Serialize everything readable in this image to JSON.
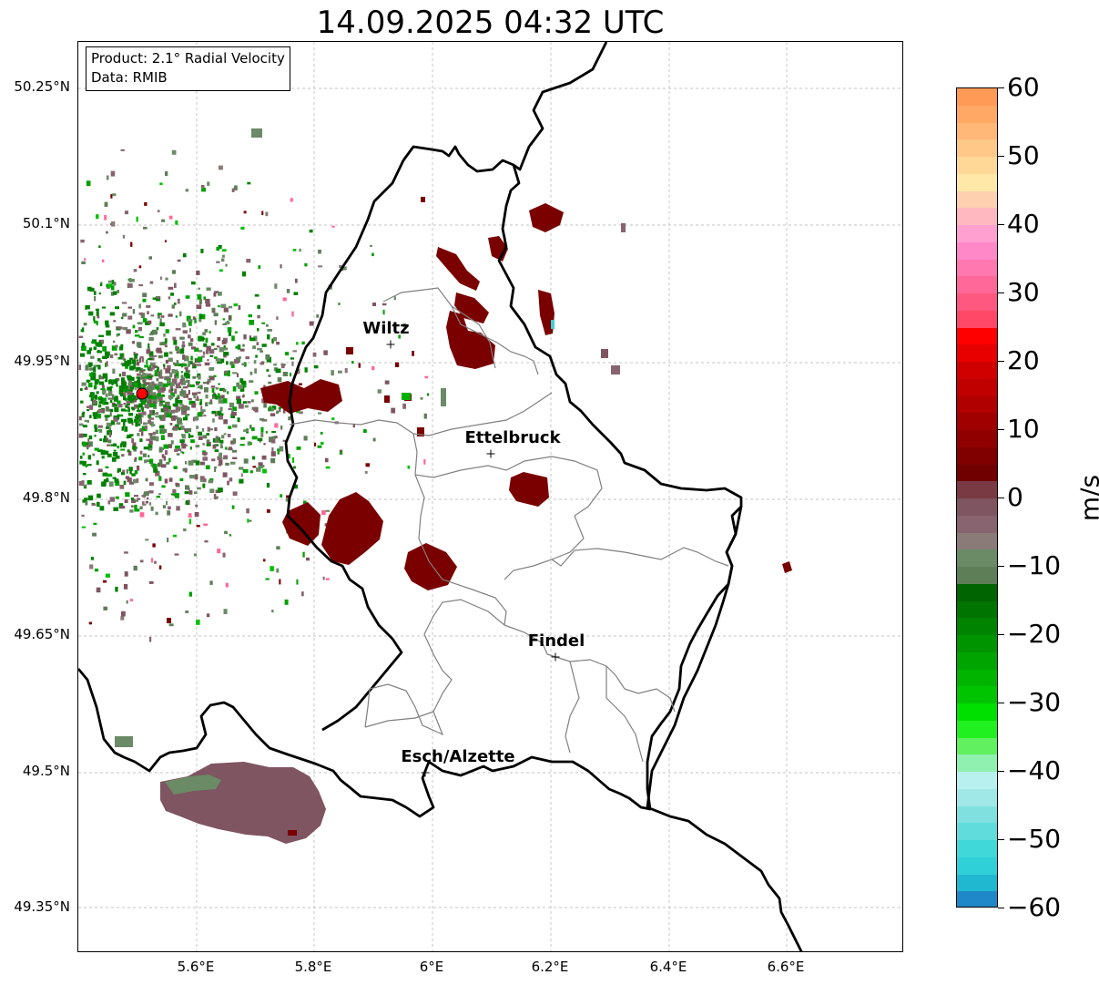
{
  "title": "14.09.2025 04:32 UTC",
  "info_box": {
    "product": "Product: 2.1° Radial Velocity",
    "data": "Data: RMIB"
  },
  "lat_ticks": [
    "50.25°N",
    "50.1°N",
    "49.95°N",
    "49.8°N",
    "49.65°N",
    "49.5°N",
    "49.35°N"
  ],
  "lon_ticks": [
    "5.6°E",
    "5.8°E",
    "6°E",
    "6.2°E",
    "6.4°E",
    "6.6°E"
  ],
  "cities": [
    {
      "name": "Wiltz"
    },
    {
      "name": "Ettelbruck"
    },
    {
      "name": "Findel"
    },
    {
      "name": "Esch/Alzette"
    }
  ],
  "colorbar": {
    "unit": "m/s",
    "ticks": [
      "60",
      "50",
      "40",
      "30",
      "20",
      "10",
      "0",
      "−10",
      "−20",
      "−30",
      "−40",
      "−50",
      "−60"
    ],
    "range": [
      -60,
      60
    ]
  },
  "colors": {
    "approaching": "#00a000",
    "receding": "#8b0000",
    "near_zero_neg": "#6b8a66",
    "near_zero_pos": "#876470",
    "border": "#000000",
    "canton_lines": "#808080",
    "radar_site": "#ff0000"
  }
}
